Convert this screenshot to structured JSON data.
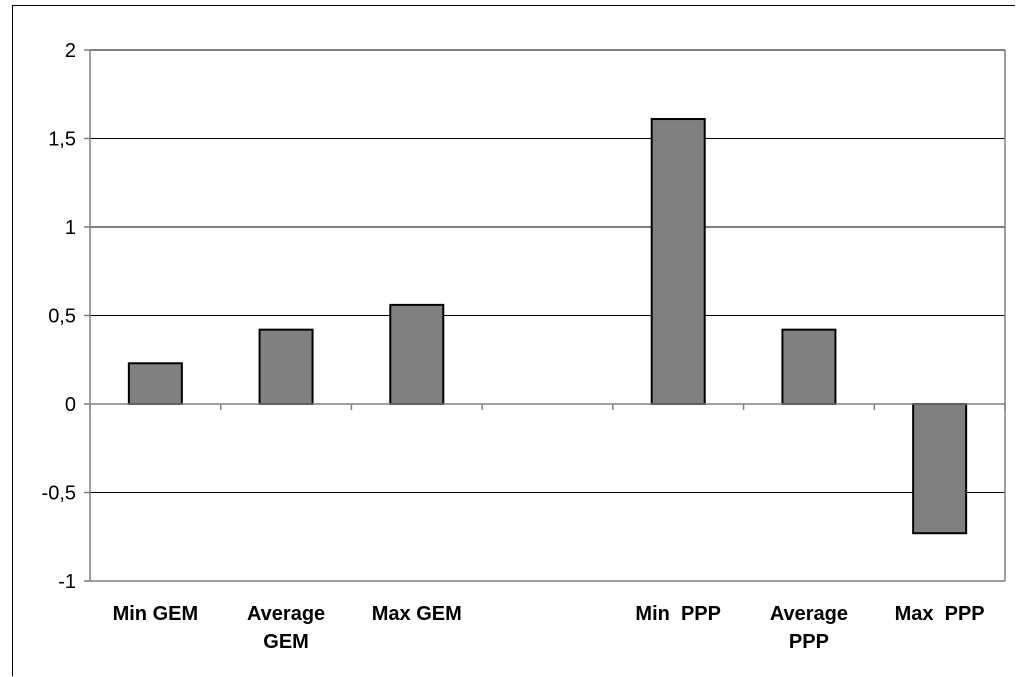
{
  "chart_data": {
    "type": "bar",
    "title": "",
    "xlabel": "",
    "ylabel": "",
    "categories": [
      [
        "Min GEM"
      ],
      [
        "Average",
        "GEM"
      ],
      [
        "Max GEM"
      ],
      [
        ""
      ],
      [
        "Min  PPP"
      ],
      [
        "Average",
        "PPP"
      ],
      [
        "Max  PPP"
      ]
    ],
    "values": [
      0.23,
      0.42,
      0.56,
      null,
      1.61,
      0.42,
      -0.73
    ],
    "ylim": [
      -1,
      2
    ],
    "yticks": [
      2,
      1.5,
      1,
      0.5,
      0,
      -0.5,
      -1
    ],
    "ytick_labels": [
      "2",
      "1,5",
      "1",
      "0,5",
      "0",
      "-0,5",
      "-1"
    ],
    "grid": true,
    "bar_color": "#808080",
    "bar_edge_color": "#000000",
    "axis_color": "#808080",
    "grid_color": "#000000"
  }
}
